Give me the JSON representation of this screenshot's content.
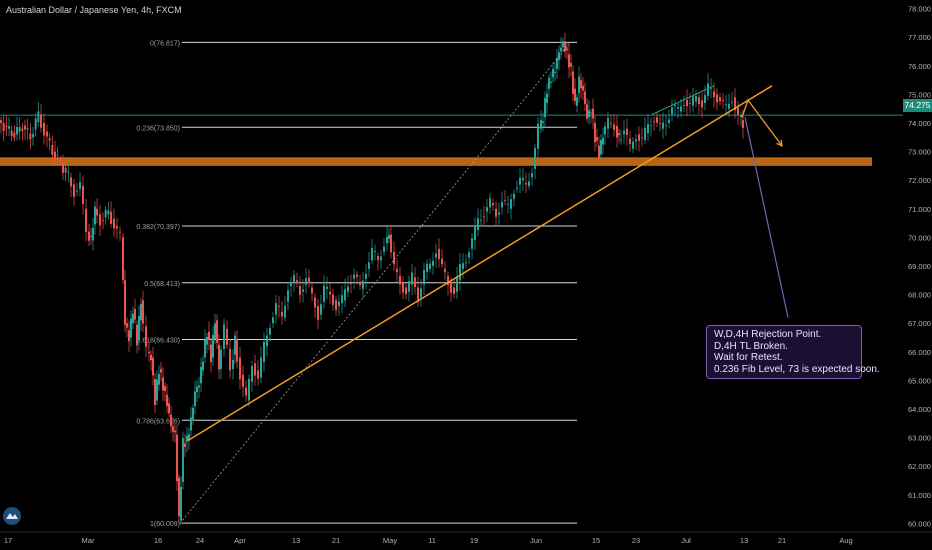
{
  "header": {
    "title": "Australian Dollar / Japanese Yen, 4h, FXCM"
  },
  "chart_data": {
    "type": "candlestick",
    "symbol": "AUD/JPY",
    "timeframe": "4h",
    "y_ticks": [
      60.0,
      61.0,
      62.0,
      63.0,
      64.0,
      65.0,
      66.0,
      67.0,
      68.0,
      69.0,
      70.0,
      71.0,
      72.0,
      73.0,
      74.0,
      75.0,
      76.0,
      77.0,
      78.0
    ],
    "y_range": [
      59.7,
      78.3
    ],
    "x_ticks": [
      "17",
      "Mar",
      "16",
      "24",
      "Apr",
      "13",
      "21",
      "May",
      "11",
      "19",
      "Jun",
      "15",
      "23",
      "Jul",
      "13",
      "21",
      "Aug"
    ],
    "current_price": "74.275",
    "fib_levels": [
      {
        "label": "0(76.817)",
        "value": 76.817
      },
      {
        "label": "0.236(73.850)",
        "value": 73.85
      },
      {
        "label": "0.382(70.397)",
        "value": 70.397
      },
      {
        "label": "0.5(68.413)",
        "value": 68.413
      },
      {
        "label": "0.618(66.430)",
        "value": 66.43
      },
      {
        "label": "0.786(63.606)",
        "value": 63.606
      },
      {
        "label": "1(60.009)",
        "value": 60.009
      }
    ],
    "support_zone": [
      72.5,
      72.8
    ],
    "price_path": [
      [
        0,
        74.1
      ],
      [
        8,
        73.8
      ],
      [
        16,
        73.6
      ],
      [
        24,
        73.9
      ],
      [
        32,
        73.5
      ],
      [
        40,
        74.3
      ],
      [
        46,
        73.7
      ],
      [
        54,
        73.0
      ],
      [
        62,
        72.6
      ],
      [
        70,
        72.1
      ],
      [
        76,
        71.6
      ],
      [
        82,
        71.8
      ],
      [
        88,
        70.2
      ],
      [
        92,
        69.9
      ],
      [
        96,
        71.0
      ],
      [
        102,
        70.6
      ],
      [
        110,
        70.9
      ],
      [
        116,
        70.4
      ],
      [
        122,
        70.0
      ],
      [
        126,
        67.0
      ],
      [
        130,
        66.5
      ],
      [
        134,
        67.5
      ],
      [
        138,
        66.4
      ],
      [
        142,
        67.8
      ],
      [
        148,
        66.0
      ],
      [
        152,
        65.8
      ],
      [
        156,
        64.3
      ],
      [
        160,
        65.4
      ],
      [
        164,
        64.8
      ],
      [
        168,
        64.2
      ],
      [
        172,
        63.4
      ],
      [
        176,
        63.1
      ],
      [
        180,
        60.1
      ],
      [
        184,
        62.8
      ],
      [
        188,
        62.9
      ],
      [
        192,
        63.6
      ],
      [
        196,
        64.6
      ],
      [
        200,
        64.9
      ],
      [
        204,
        65.8
      ],
      [
        208,
        66.7
      ],
      [
        212,
        65.8
      ],
      [
        216,
        67.1
      ],
      [
        220,
        65.4
      ],
      [
        226,
        66.8
      ],
      [
        232,
        65.4
      ],
      [
        236,
        66.4
      ],
      [
        242,
        65.2
      ],
      [
        248,
        64.3
      ],
      [
        254,
        65.6
      ],
      [
        260,
        65.1
      ],
      [
        266,
        66.2
      ],
      [
        272,
        67.0
      ],
      [
        278,
        67.6
      ],
      [
        284,
        67.2
      ],
      [
        290,
        68.3
      ],
      [
        296,
        68.5
      ],
      [
        302,
        68.1
      ],
      [
        308,
        68.6
      ],
      [
        314,
        67.9
      ],
      [
        320,
        67.3
      ],
      [
        326,
        68.2
      ],
      [
        332,
        68.0
      ],
      [
        338,
        67.6
      ],
      [
        344,
        67.8
      ],
      [
        350,
        68.4
      ],
      [
        356,
        68.7
      ],
      [
        362,
        68.2
      ],
      [
        368,
        68.9
      ],
      [
        374,
        69.5
      ],
      [
        380,
        69.2
      ],
      [
        386,
        69.8
      ],
      [
        390,
        70.1
      ],
      [
        396,
        68.9
      ],
      [
        402,
        68.4
      ],
      [
        408,
        68.1
      ],
      [
        414,
        68.6
      ],
      [
        420,
        67.9
      ],
      [
        426,
        68.8
      ],
      [
        432,
        69.0
      ],
      [
        438,
        69.6
      ],
      [
        444,
        68.9
      ],
      [
        450,
        68.4
      ],
      [
        456,
        68.1
      ],
      [
        462,
        68.9
      ],
      [
        468,
        69.3
      ],
      [
        474,
        69.9
      ],
      [
        480,
        70.6
      ],
      [
        486,
        70.9
      ],
      [
        492,
        71.2
      ],
      [
        498,
        70.8
      ],
      [
        504,
        71.3
      ],
      [
        510,
        71.0
      ],
      [
        516,
        71.7
      ],
      [
        522,
        72.0
      ],
      [
        528,
        71.8
      ],
      [
        534,
        72.4
      ],
      [
        540,
        73.8
      ],
      [
        544,
        74.2
      ],
      [
        548,
        75.2
      ],
      [
        552,
        75.6
      ],
      [
        556,
        75.9
      ],
      [
        560,
        76.5
      ],
      [
        564,
        76.8
      ],
      [
        568,
        76.4
      ],
      [
        572,
        75.8
      ],
      [
        576,
        74.6
      ],
      [
        580,
        75.5
      ],
      [
        584,
        75.1
      ],
      [
        588,
        74.2
      ],
      [
        592,
        74.5
      ],
      [
        596,
        73.5
      ],
      [
        600,
        72.9
      ],
      [
        604,
        73.6
      ],
      [
        610,
        74.0
      ],
      [
        616,
        73.9
      ],
      [
        620,
        73.4
      ],
      [
        626,
        73.8
      ],
      [
        632,
        73.1
      ],
      [
        638,
        73.6
      ],
      [
        644,
        73.4
      ],
      [
        650,
        73.9
      ],
      [
        656,
        74.2
      ],
      [
        662,
        73.8
      ],
      [
        668,
        74.0
      ],
      [
        674,
        74.6
      ],
      [
        680,
        74.4
      ],
      [
        686,
        74.8
      ],
      [
        692,
        74.6
      ],
      [
        698,
        74.9
      ],
      [
        704,
        74.7
      ],
      [
        710,
        75.2
      ],
      [
        716,
        75.0
      ],
      [
        722,
        74.8
      ],
      [
        728,
        74.5
      ],
      [
        734,
        74.9
      ],
      [
        740,
        74.2
      ],
      [
        744,
        74.0
      ]
    ],
    "trendline_rising": {
      "from": [
        188,
        62.9
      ],
      "to": [
        772,
        75.3
      ]
    },
    "fib_diagonal": {
      "from": [
        180,
        60.0
      ],
      "to": [
        570,
        76.8
      ]
    },
    "channel_upper": {
      "from": [
        652,
        74.3
      ],
      "to": [
        714,
        75.3
      ]
    },
    "projection": [
      [
        742,
        74.2
      ],
      [
        748,
        74.8
      ],
      [
        782,
        73.2
      ]
    ],
    "projection_long": {
      "from": [
        745,
        74.2
      ],
      "to": [
        788,
        67.2
      ]
    }
  },
  "annotation": {
    "lines": [
      "W,D,4H Rejection Point.",
      "D,4H TL Broken.",
      "Wait for Retest.",
      "0.236 Fib Level, 73 is expected soon."
    ],
    "border_color": "#7b5fb0"
  },
  "colors": {
    "orange": "#f59a23",
    "support": "#c46a12",
    "fib": "#d9d9d9",
    "price_line": "#1f8b7a",
    "up": "#26a69a",
    "down": "#ef5350"
  },
  "logo_icon": "tradingview-logo-icon"
}
